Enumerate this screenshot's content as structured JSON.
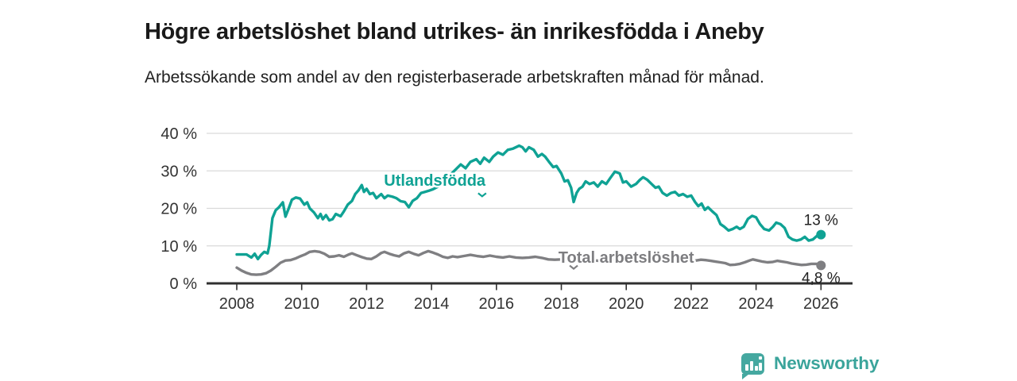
{
  "header": {
    "title": "Högre arbetslöshet bland utrikes- än inrikesfödda i Aneby",
    "subtitle": "Arbetssökande som andel av den registerbaserade arbetskraften månad för månad."
  },
  "footer": {
    "brand": "Newsworthy"
  },
  "colors": {
    "teal": "#0fa294",
    "gray": "#7f7f82",
    "gray_label": "#7d7d80",
    "axis": "#303030",
    "grid": "#dadada",
    "tick_label": "#333333",
    "value_label": "#222222",
    "logo": "#45a8a0",
    "background": "#ffffff"
  },
  "chart_data": {
    "type": "line",
    "title": "Högre arbetslöshet bland utrikes- än inrikesfödda i Aneby",
    "xlabel": "",
    "ylabel": "",
    "grid": true,
    "legend_position": "inline-labels",
    "x_axis": {
      "range": [
        2008,
        2026.3
      ],
      "ticks": [
        {
          "value": 2008,
          "label": "2008"
        },
        {
          "value": 2010,
          "label": "2010"
        },
        {
          "value": 2012,
          "label": "2012"
        },
        {
          "value": 2014,
          "label": "2014"
        },
        {
          "value": 2016,
          "label": "2016"
        },
        {
          "value": 2018,
          "label": "2018"
        },
        {
          "value": 2020,
          "label": "2020"
        },
        {
          "value": 2022,
          "label": "2022"
        },
        {
          "value": 2024,
          "label": "2024"
        },
        {
          "value": 2026,
          "label": "2026"
        }
      ]
    },
    "y_axis": {
      "range": [
        0,
        40
      ],
      "ticks": [
        {
          "value": 0,
          "label": "0 %"
        },
        {
          "value": 10,
          "label": "10 %"
        },
        {
          "value": 20,
          "label": "20 %"
        },
        {
          "value": 30,
          "label": "30 %"
        },
        {
          "value": 40,
          "label": "40 %"
        }
      ]
    },
    "series": [
      {
        "name": "Utlandsfödda",
        "color": "#0fa294",
        "label_color": "#0fa294",
        "label_anchor": {
          "year": 2014.1,
          "value": 27.5
        },
        "pointer": {
          "year": 2015.56,
          "value": 23.2
        },
        "end_label": "13 %",
        "end_label_position": "above",
        "end_value": 13,
        "points": [
          [
            2008.0,
            7.7
          ],
          [
            2008.15,
            7.7
          ],
          [
            2008.3,
            7.7
          ],
          [
            2008.45,
            6.9
          ],
          [
            2008.55,
            7.9
          ],
          [
            2008.65,
            6.5
          ],
          [
            2008.75,
            7.6
          ],
          [
            2008.85,
            8.4
          ],
          [
            2008.95,
            8.0
          ],
          [
            2009.0,
            10.0
          ],
          [
            2009.1,
            17.4
          ],
          [
            2009.2,
            19.5
          ],
          [
            2009.3,
            20.3
          ],
          [
            2009.42,
            21.6
          ],
          [
            2009.5,
            17.8
          ],
          [
            2009.6,
            20.0
          ],
          [
            2009.7,
            22.3
          ],
          [
            2009.82,
            22.9
          ],
          [
            2009.95,
            22.6
          ],
          [
            2010.08,
            21.0
          ],
          [
            2010.17,
            21.6
          ],
          [
            2010.25,
            20.0
          ],
          [
            2010.38,
            18.9
          ],
          [
            2010.5,
            17.4
          ],
          [
            2010.58,
            18.5
          ],
          [
            2010.65,
            17.1
          ],
          [
            2010.75,
            18.2
          ],
          [
            2010.85,
            16.8
          ],
          [
            2010.95,
            17.1
          ],
          [
            2011.05,
            18.5
          ],
          [
            2011.2,
            17.9
          ],
          [
            2011.3,
            19.2
          ],
          [
            2011.42,
            21.0
          ],
          [
            2011.55,
            22.0
          ],
          [
            2011.65,
            23.8
          ],
          [
            2011.75,
            24.8
          ],
          [
            2011.85,
            26.2
          ],
          [
            2011.92,
            24.4
          ],
          [
            2012.0,
            25.2
          ],
          [
            2012.1,
            23.8
          ],
          [
            2012.2,
            24.1
          ],
          [
            2012.3,
            22.7
          ],
          [
            2012.45,
            23.8
          ],
          [
            2012.55,
            22.7
          ],
          [
            2012.65,
            23.4
          ],
          [
            2012.8,
            23.1
          ],
          [
            2012.92,
            22.7
          ],
          [
            2013.05,
            21.9
          ],
          [
            2013.18,
            21.7
          ],
          [
            2013.3,
            20.3
          ],
          [
            2013.42,
            22.0
          ],
          [
            2013.55,
            22.7
          ],
          [
            2013.68,
            24.1
          ],
          [
            2013.8,
            24.4
          ],
          [
            2013.92,
            24.7
          ],
          [
            2014.05,
            25.1
          ],
          [
            2014.2,
            25.8
          ],
          [
            2014.35,
            26.8
          ],
          [
            2014.5,
            28.3
          ],
          [
            2014.7,
            30.0
          ],
          [
            2014.9,
            31.7
          ],
          [
            2015.05,
            30.7
          ],
          [
            2015.2,
            32.4
          ],
          [
            2015.38,
            33.1
          ],
          [
            2015.5,
            31.9
          ],
          [
            2015.62,
            33.5
          ],
          [
            2015.78,
            32.4
          ],
          [
            2015.9,
            33.8
          ],
          [
            2016.05,
            34.9
          ],
          [
            2016.2,
            34.3
          ],
          [
            2016.35,
            35.6
          ],
          [
            2016.5,
            35.9
          ],
          [
            2016.7,
            36.7
          ],
          [
            2016.8,
            36.3
          ],
          [
            2016.9,
            35.2
          ],
          [
            2017.0,
            36.3
          ],
          [
            2017.15,
            35.6
          ],
          [
            2017.28,
            33.8
          ],
          [
            2017.4,
            34.5
          ],
          [
            2017.5,
            33.8
          ],
          [
            2017.62,
            32.4
          ],
          [
            2017.75,
            31.0
          ],
          [
            2017.85,
            31.3
          ],
          [
            2018.0,
            29.3
          ],
          [
            2018.1,
            27.2
          ],
          [
            2018.2,
            27.5
          ],
          [
            2018.3,
            25.5
          ],
          [
            2018.38,
            21.7
          ],
          [
            2018.47,
            24.1
          ],
          [
            2018.55,
            25.2
          ],
          [
            2018.65,
            25.8
          ],
          [
            2018.75,
            27.2
          ],
          [
            2018.87,
            26.5
          ],
          [
            2019.0,
            26.9
          ],
          [
            2019.12,
            25.8
          ],
          [
            2019.25,
            27.2
          ],
          [
            2019.38,
            26.5
          ],
          [
            2019.5,
            28.0
          ],
          [
            2019.65,
            29.8
          ],
          [
            2019.8,
            29.3
          ],
          [
            2019.9,
            26.9
          ],
          [
            2020.0,
            27.2
          ],
          [
            2020.15,
            25.8
          ],
          [
            2020.3,
            26.5
          ],
          [
            2020.42,
            27.6
          ],
          [
            2020.52,
            28.3
          ],
          [
            2020.65,
            27.6
          ],
          [
            2020.78,
            26.5
          ],
          [
            2020.9,
            25.5
          ],
          [
            2021.0,
            25.8
          ],
          [
            2021.12,
            24.1
          ],
          [
            2021.25,
            23.4
          ],
          [
            2021.38,
            24.1
          ],
          [
            2021.5,
            24.4
          ],
          [
            2021.62,
            23.4
          ],
          [
            2021.75,
            23.8
          ],
          [
            2021.88,
            23.1
          ],
          [
            2022.0,
            23.4
          ],
          [
            2022.12,
            21.7
          ],
          [
            2022.22,
            20.6
          ],
          [
            2022.32,
            21.3
          ],
          [
            2022.42,
            19.6
          ],
          [
            2022.52,
            20.3
          ],
          [
            2022.65,
            19.2
          ],
          [
            2022.78,
            18.2
          ],
          [
            2022.9,
            15.8
          ],
          [
            2023.02,
            15.1
          ],
          [
            2023.15,
            14.1
          ],
          [
            2023.28,
            14.5
          ],
          [
            2023.4,
            15.1
          ],
          [
            2023.5,
            14.5
          ],
          [
            2023.62,
            15.1
          ],
          [
            2023.75,
            17.2
          ],
          [
            2023.88,
            18.0
          ],
          [
            2024.0,
            17.6
          ],
          [
            2024.12,
            15.8
          ],
          [
            2024.25,
            14.5
          ],
          [
            2024.4,
            14.1
          ],
          [
            2024.52,
            15.1
          ],
          [
            2024.62,
            16.2
          ],
          [
            2024.75,
            15.8
          ],
          [
            2024.88,
            14.8
          ],
          [
            2025.0,
            12.4
          ],
          [
            2025.12,
            11.7
          ],
          [
            2025.25,
            11.4
          ],
          [
            2025.38,
            11.7
          ],
          [
            2025.5,
            12.4
          ],
          [
            2025.62,
            11.4
          ],
          [
            2025.75,
            11.7
          ],
          [
            2025.88,
            12.7
          ],
          [
            2026.0,
            13.0
          ]
        ]
      },
      {
        "name": "Total arbetslöshet",
        "color": "#7f7f82",
        "label_color": "#7d7d80",
        "label_anchor": {
          "year": 2020.0,
          "value": 7.0
        },
        "pointer": {
          "year": 2018.38,
          "value": 3.9
        },
        "end_label": "4,8 %",
        "end_label_position": "below",
        "end_value": 4.8,
        "points": [
          [
            2008.0,
            4.2
          ],
          [
            2008.15,
            3.4
          ],
          [
            2008.3,
            2.8
          ],
          [
            2008.45,
            2.4
          ],
          [
            2008.6,
            2.3
          ],
          [
            2008.75,
            2.4
          ],
          [
            2008.9,
            2.7
          ],
          [
            2009.05,
            3.4
          ],
          [
            2009.2,
            4.4
          ],
          [
            2009.35,
            5.5
          ],
          [
            2009.5,
            6.1
          ],
          [
            2009.65,
            6.2
          ],
          [
            2009.8,
            6.6
          ],
          [
            2009.95,
            7.2
          ],
          [
            2010.1,
            7.7
          ],
          [
            2010.25,
            8.4
          ],
          [
            2010.4,
            8.6
          ],
          [
            2010.55,
            8.4
          ],
          [
            2010.7,
            7.9
          ],
          [
            2010.85,
            7.1
          ],
          [
            2011.0,
            7.2
          ],
          [
            2011.15,
            7.5
          ],
          [
            2011.3,
            7.1
          ],
          [
            2011.45,
            7.7
          ],
          [
            2011.55,
            8.0
          ],
          [
            2011.7,
            7.5
          ],
          [
            2011.85,
            7.0
          ],
          [
            2012.0,
            6.6
          ],
          [
            2012.15,
            6.5
          ],
          [
            2012.3,
            7.2
          ],
          [
            2012.45,
            8.1
          ],
          [
            2012.55,
            8.4
          ],
          [
            2012.7,
            7.9
          ],
          [
            2012.85,
            7.5
          ],
          [
            2013.0,
            7.2
          ],
          [
            2013.15,
            8.0
          ],
          [
            2013.3,
            8.4
          ],
          [
            2013.45,
            7.9
          ],
          [
            2013.6,
            7.5
          ],
          [
            2013.75,
            8.1
          ],
          [
            2013.9,
            8.6
          ],
          [
            2014.05,
            8.2
          ],
          [
            2014.2,
            7.7
          ],
          [
            2014.35,
            7.1
          ],
          [
            2014.5,
            6.8
          ],
          [
            2014.65,
            7.2
          ],
          [
            2014.8,
            7.0
          ],
          [
            2015.0,
            7.3
          ],
          [
            2015.2,
            7.6
          ],
          [
            2015.4,
            7.3
          ],
          [
            2015.6,
            7.1
          ],
          [
            2015.8,
            7.4
          ],
          [
            2016.0,
            7.1
          ],
          [
            2016.2,
            6.9
          ],
          [
            2016.4,
            7.2
          ],
          [
            2016.6,
            6.9
          ],
          [
            2016.8,
            6.8
          ],
          [
            2017.0,
            6.9
          ],
          [
            2017.2,
            7.1
          ],
          [
            2017.4,
            6.8
          ],
          [
            2017.6,
            6.4
          ],
          [
            2017.8,
            6.3
          ],
          [
            2018.0,
            6.4
          ],
          [
            2018.2,
            6.6
          ],
          [
            2018.4,
            6.4
          ],
          [
            2018.6,
            6.2
          ],
          [
            2018.8,
            6.3
          ],
          [
            2019.0,
            6.1
          ],
          [
            2019.2,
            6.0
          ],
          [
            2019.4,
            6.1
          ],
          [
            2019.6,
            6.3
          ],
          [
            2019.8,
            6.4
          ],
          [
            2020.0,
            6.6
          ],
          [
            2020.2,
            6.8
          ],
          [
            2020.4,
            7.0
          ],
          [
            2020.6,
            6.9
          ],
          [
            2020.8,
            6.7
          ],
          [
            2021.0,
            6.5
          ],
          [
            2021.2,
            6.3
          ],
          [
            2021.4,
            6.2
          ],
          [
            2021.6,
            6.1
          ],
          [
            2021.8,
            6.0
          ],
          [
            2022.0,
            6.0
          ],
          [
            2022.15,
            6.1
          ],
          [
            2022.3,
            6.3
          ],
          [
            2022.45,
            6.2
          ],
          [
            2022.6,
            6.0
          ],
          [
            2022.75,
            5.8
          ],
          [
            2022.9,
            5.6
          ],
          [
            2023.05,
            5.4
          ],
          [
            2023.2,
            4.9
          ],
          [
            2023.35,
            5.0
          ],
          [
            2023.5,
            5.2
          ],
          [
            2023.65,
            5.6
          ],
          [
            2023.8,
            6.1
          ],
          [
            2023.9,
            6.4
          ],
          [
            2024.05,
            6.1
          ],
          [
            2024.2,
            5.8
          ],
          [
            2024.35,
            5.6
          ],
          [
            2024.5,
            5.7
          ],
          [
            2024.65,
            6.0
          ],
          [
            2024.8,
            5.8
          ],
          [
            2024.95,
            5.6
          ],
          [
            2025.1,
            5.3
          ],
          [
            2025.25,
            5.1
          ],
          [
            2025.4,
            4.9
          ],
          [
            2025.55,
            5.0
          ],
          [
            2025.7,
            5.2
          ],
          [
            2025.85,
            5.2
          ],
          [
            2026.0,
            4.8
          ]
        ]
      }
    ]
  }
}
